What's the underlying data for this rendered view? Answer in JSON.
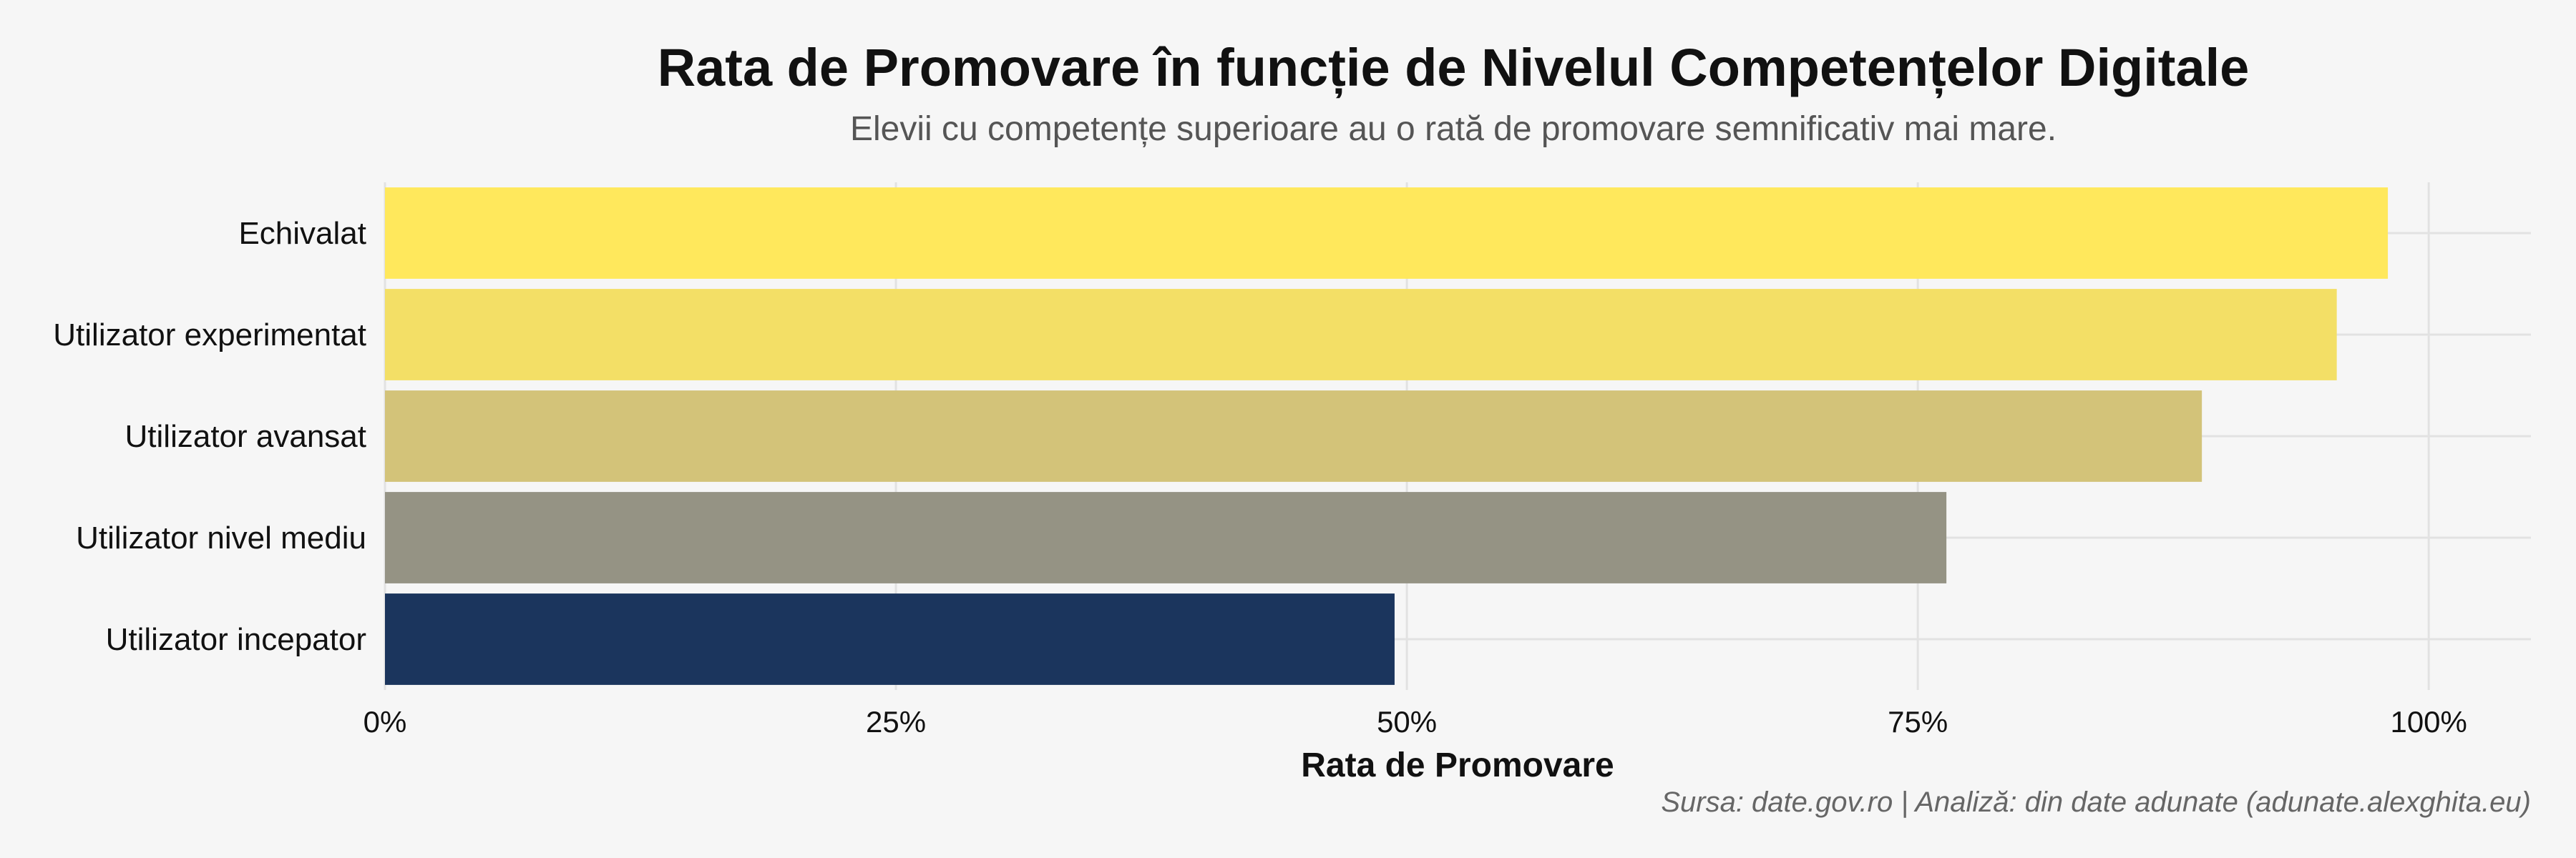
{
  "chart_data": {
    "type": "bar",
    "orientation": "horizontal",
    "title": "Rata de Promovare în funcție de Nivelul Competențelor Digitale",
    "subtitle": "Elevii cu competențe superioare au o rată de promovare semnificativ mai mare.",
    "xlabel": "Rata de Promovare",
    "ylabel": "",
    "categories": [
      "Echivalat",
      "Utilizator experimentat",
      "Utilizator avansat",
      "Utilizator nivel mediu",
      "Utilizator incepator"
    ],
    "values": [
      0.98,
      0.955,
      0.889,
      0.764,
      0.494
    ],
    "colors": [
      "#ffe85c",
      "#f3df66",
      "#d3c379",
      "#959384",
      "#1b355d"
    ],
    "xlim": [
      0,
      1.05
    ],
    "xticks": [
      0,
      0.25,
      0.5,
      0.75,
      1.0
    ],
    "xtick_labels": [
      "0%",
      "25%",
      "50%",
      "75%",
      "100%"
    ],
    "grid": true,
    "legend": "none",
    "caption": "Sursa: date.gov.ro | Analiză: din date adunate (adunate.alexghita.eu)"
  }
}
